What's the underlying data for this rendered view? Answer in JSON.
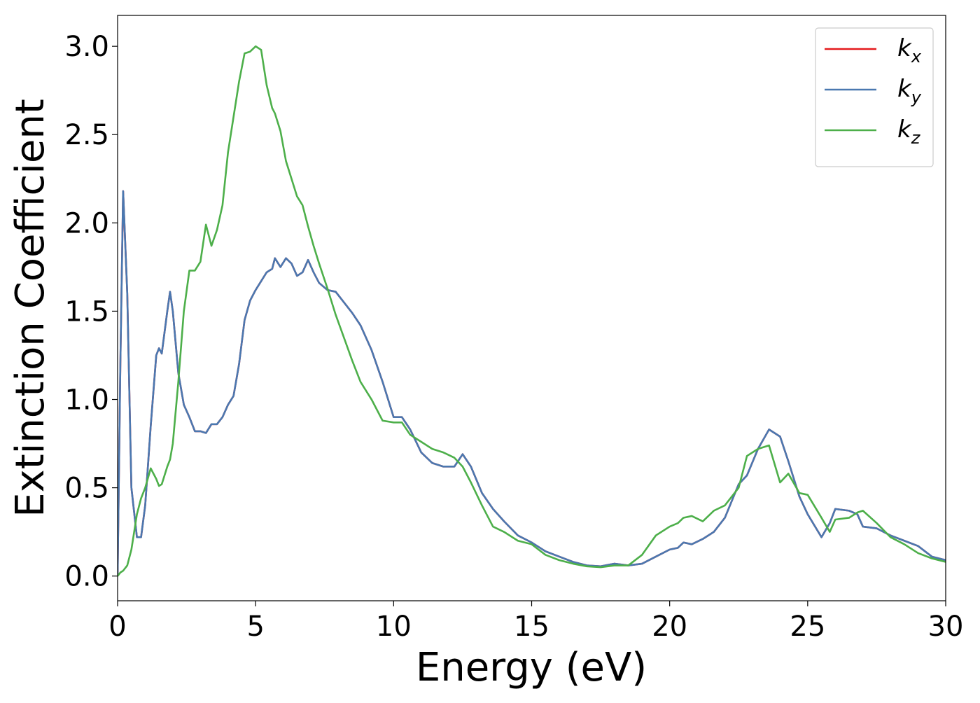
{
  "chart_data": {
    "type": "line",
    "xlabel": "Energy (eV)",
    "ylabel": "Extinction Coefficient",
    "x": [
      0,
      0.1,
      0.2,
      0.35,
      0.5,
      0.7,
      0.85,
      1,
      1.2,
      1.4,
      1.5,
      1.6,
      1.8,
      1.9,
      2,
      2.2,
      2.4,
      2.6,
      2.8,
      3,
      3.2,
      3.4,
      3.6,
      3.8,
      4,
      4.2,
      4.4,
      4.6,
      4.8,
      5,
      5.2,
      5.4,
      5.6,
      5.7,
      5.9,
      6.1,
      6.3,
      6.5,
      6.7,
      6.9,
      7.1,
      7.3,
      7.6,
      7.9,
      8.2,
      8.5,
      8.8,
      9.2,
      9.6,
      10,
      10.3,
      10.6,
      11,
      11.4,
      11.8,
      12.2,
      12.5,
      12.8,
      13.2,
      13.6,
      14,
      14.5,
      15,
      15.5,
      16,
      16.5,
      17,
      17.5,
      18,
      18.5,
      19,
      19.5,
      20,
      20.3,
      20.5,
      20.8,
      21.2,
      21.6,
      22,
      22.5,
      22.8,
      23.2,
      23.6,
      24,
      24.3,
      24.7,
      25,
      25.5,
      25.8,
      26,
      26.5,
      26.8,
      27,
      27.5,
      28,
      28.5,
      29,
      29.5,
      30
    ],
    "series": [
      {
        "name": "kx",
        "color": "#e41a1c",
        "values": [
          0,
          1.2,
          2.18,
          1.6,
          0.5,
          0.22,
          0.22,
          0.4,
          0.85,
          1.25,
          1.29,
          1.26,
          1.5,
          1.61,
          1.5,
          1.15,
          0.97,
          0.9,
          0.82,
          0.82,
          0.81,
          0.86,
          0.86,
          0.9,
          0.97,
          1.02,
          1.2,
          1.45,
          1.56,
          1.62,
          1.67,
          1.72,
          1.74,
          1.8,
          1.75,
          1.8,
          1.77,
          1.7,
          1.72,
          1.79,
          1.72,
          1.66,
          1.62,
          1.61,
          1.55,
          1.49,
          1.42,
          1.28,
          1.1,
          0.9,
          0.9,
          0.83,
          0.7,
          0.64,
          0.62,
          0.62,
          0.69,
          0.62,
          0.47,
          0.38,
          0.31,
          0.23,
          0.19,
          0.14,
          0.11,
          0.08,
          0.06,
          0.055,
          0.07,
          0.06,
          0.07,
          0.11,
          0.15,
          0.16,
          0.19,
          0.18,
          0.21,
          0.25,
          0.33,
          0.52,
          0.57,
          0.72,
          0.83,
          0.79,
          0.65,
          0.45,
          0.35,
          0.22,
          0.3,
          0.38,
          0.37,
          0.35,
          0.28,
          0.27,
          0.23,
          0.2,
          0.17,
          0.11,
          0.09
        ]
      },
      {
        "name": "ky",
        "color": "#4a78b0",
        "values": [
          0,
          1.2,
          2.18,
          1.6,
          0.5,
          0.22,
          0.22,
          0.4,
          0.85,
          1.25,
          1.29,
          1.26,
          1.5,
          1.61,
          1.5,
          1.15,
          0.97,
          0.9,
          0.82,
          0.82,
          0.81,
          0.86,
          0.86,
          0.9,
          0.97,
          1.02,
          1.2,
          1.45,
          1.56,
          1.62,
          1.67,
          1.72,
          1.74,
          1.8,
          1.75,
          1.8,
          1.77,
          1.7,
          1.72,
          1.79,
          1.72,
          1.66,
          1.62,
          1.61,
          1.55,
          1.49,
          1.42,
          1.28,
          1.1,
          0.9,
          0.9,
          0.83,
          0.7,
          0.64,
          0.62,
          0.62,
          0.69,
          0.62,
          0.47,
          0.38,
          0.31,
          0.23,
          0.19,
          0.14,
          0.11,
          0.08,
          0.06,
          0.055,
          0.07,
          0.06,
          0.07,
          0.11,
          0.15,
          0.16,
          0.19,
          0.18,
          0.21,
          0.25,
          0.33,
          0.52,
          0.57,
          0.72,
          0.83,
          0.79,
          0.65,
          0.45,
          0.35,
          0.22,
          0.3,
          0.38,
          0.37,
          0.35,
          0.28,
          0.27,
          0.23,
          0.2,
          0.17,
          0.11,
          0.09
        ]
      },
      {
        "name": "kz",
        "color": "#4daf4a",
        "values": [
          0,
          0.02,
          0.03,
          0.06,
          0.15,
          0.35,
          0.44,
          0.5,
          0.61,
          0.55,
          0.51,
          0.52,
          0.62,
          0.66,
          0.75,
          1.1,
          1.5,
          1.73,
          1.73,
          1.78,
          1.99,
          1.87,
          1.96,
          2.1,
          2.4,
          2.6,
          2.8,
          2.96,
          2.97,
          3.0,
          2.98,
          2.78,
          2.65,
          2.62,
          2.52,
          2.35,
          2.25,
          2.15,
          2.1,
          1.98,
          1.87,
          1.77,
          1.63,
          1.48,
          1.35,
          1.22,
          1.1,
          1.0,
          0.88,
          0.87,
          0.87,
          0.8,
          0.76,
          0.72,
          0.7,
          0.67,
          0.62,
          0.53,
          0.4,
          0.28,
          0.25,
          0.2,
          0.18,
          0.12,
          0.09,
          0.07,
          0.055,
          0.05,
          0.06,
          0.06,
          0.12,
          0.23,
          0.28,
          0.3,
          0.33,
          0.34,
          0.31,
          0.37,
          0.4,
          0.5,
          0.68,
          0.72,
          0.74,
          0.53,
          0.58,
          0.47,
          0.46,
          0.33,
          0.25,
          0.32,
          0.33,
          0.36,
          0.37,
          0.3,
          0.22,
          0.18,
          0.13,
          0.1,
          0.08
        ]
      }
    ],
    "xlim": [
      0,
      30
    ],
    "xticks": [
      0,
      5,
      10,
      15,
      20,
      25,
      30
    ],
    "ylim": [
      -0.14,
      3.175
    ],
    "yticks": [
      {
        "value": 0,
        "label": "0.0"
      },
      {
        "value": 0.5,
        "label": "0.5"
      },
      {
        "value": 1,
        "label": "1.0"
      },
      {
        "value": 1.5,
        "label": "1.5"
      },
      {
        "value": 2,
        "label": "2.0"
      },
      {
        "value": 2.5,
        "label": "2.5"
      },
      {
        "value": 3,
        "label": "3.0"
      }
    ],
    "legend": "upper right",
    "grid": false
  }
}
